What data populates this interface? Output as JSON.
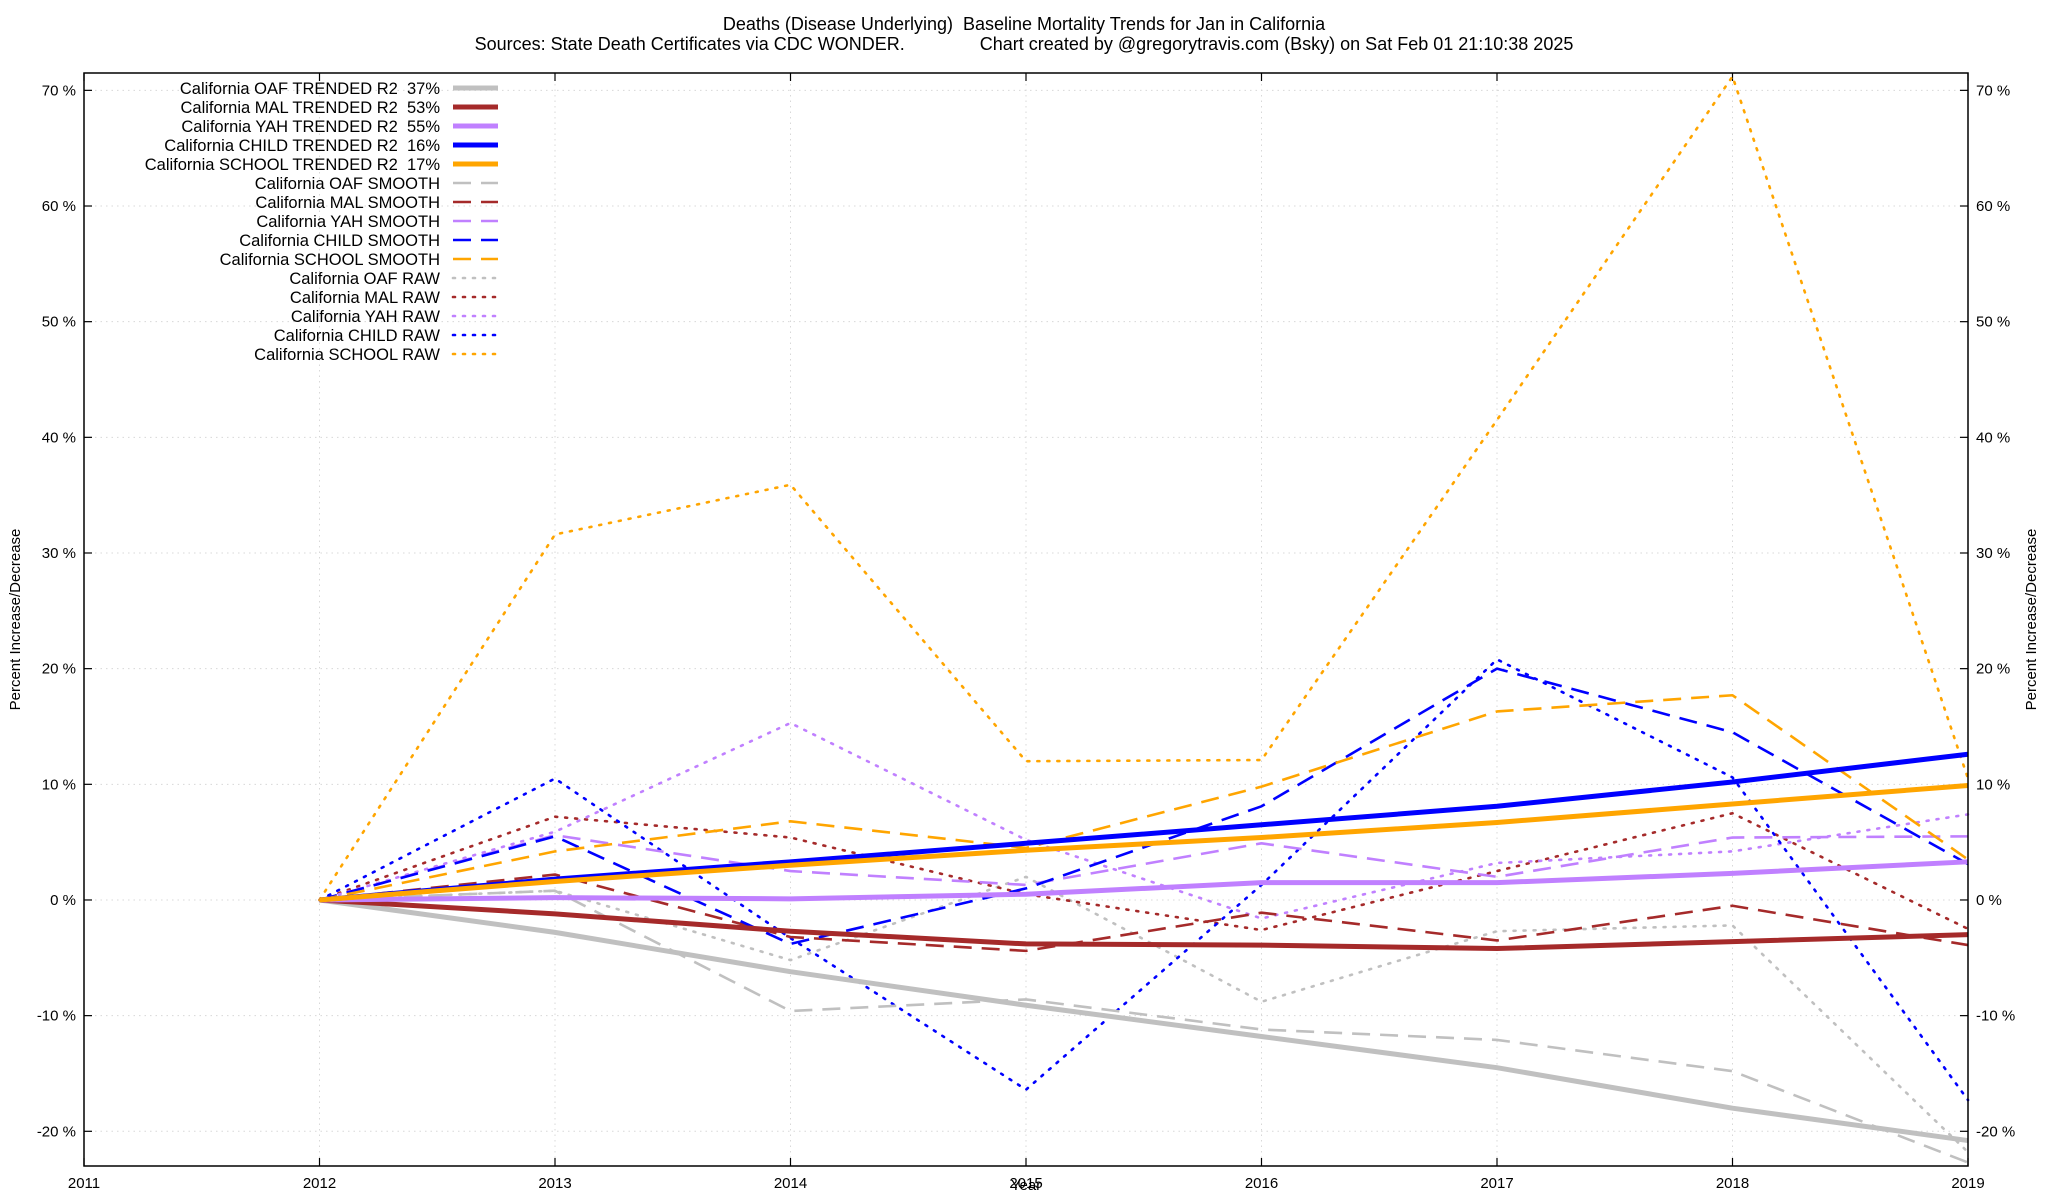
{
  "header": {
    "title_line1": "Deaths (Disease Underlying)  Baseline Mortality Trends for Jan in California",
    "title_line2": "Sources: State Death Certificates via CDC WONDER.               Chart created by @gregorytravis.com (Bsky) on Sat Feb 01 21:10:38 2025"
  },
  "chart_data": {
    "type": "line",
    "xlabel": "Year",
    "ylabel": "Percent Increase/Decrease",
    "y2label": "Percent Increase/Decrease",
    "xlim": [
      2011,
      2019
    ],
    "ylim": [
      -23,
      71.5
    ],
    "x_ticks": [
      "2011",
      "2012",
      "2013",
      "2014",
      "2015",
      "2016",
      "2017",
      "2018",
      "2019"
    ],
    "y_ticks": [
      -20,
      -10,
      0,
      10,
      20,
      30,
      40,
      50,
      60,
      70
    ],
    "y_tick_suffix": " %",
    "grid": true,
    "legend_position": "top-left",
    "x": [
      2012,
      2013,
      2014,
      2015,
      2016,
      2017,
      2018,
      2019
    ],
    "series": [
      {
        "name": "California OAF TRENDED R2  37%",
        "style": "solid",
        "color": "#c0c0c0",
        "width": 5,
        "values": [
          0,
          -2.8,
          -6.2,
          -9.1,
          -11.8,
          -14.5,
          -18.0,
          -20.8
        ]
      },
      {
        "name": "California MAL TRENDED R2  53%",
        "style": "solid",
        "color": "#a52a2a",
        "width": 5,
        "values": [
          0,
          -1.2,
          -2.7,
          -3.8,
          -3.9,
          -4.2,
          -3.6,
          -3.0
        ]
      },
      {
        "name": "California YAH TRENDED R2  55%",
        "style": "solid",
        "color": "#c080ff",
        "width": 5,
        "values": [
          0,
          0.2,
          0.1,
          0.5,
          1.5,
          1.5,
          2.3,
          3.3
        ]
      },
      {
        "name": "California CHILD TRENDED R2  16%",
        "style": "solid",
        "color": "#0000ff",
        "width": 5,
        "values": [
          0,
          1.8,
          3.3,
          4.9,
          6.5,
          8.1,
          10.2,
          12.6
        ]
      },
      {
        "name": "California SCHOOL TRENDED R2  17%",
        "style": "solid",
        "color": "#ffa500",
        "width": 5,
        "values": [
          0,
          1.6,
          3.0,
          4.3,
          5.4,
          6.7,
          8.3,
          9.9
        ]
      },
      {
        "name": "California OAF SMOOTH",
        "style": "dashed",
        "color": "#c0c0c0",
        "width": 2.6,
        "values": [
          0,
          0.8,
          -9.6,
          -8.6,
          -11.2,
          -12.1,
          -14.8,
          -22.7
        ]
      },
      {
        "name": "California MAL SMOOTH",
        "style": "dashed",
        "color": "#a52a2a",
        "width": 2.6,
        "values": [
          0,
          2.2,
          -3.2,
          -4.4,
          -1.1,
          -3.5,
          -0.5,
          -3.9
        ]
      },
      {
        "name": "California YAH SMOOTH",
        "style": "dashed",
        "color": "#c080ff",
        "width": 2.6,
        "values": [
          0,
          5.6,
          2.5,
          1.3,
          4.9,
          2.0,
          5.4,
          5.5
        ]
      },
      {
        "name": "California CHILD SMOOTH",
        "style": "dashed",
        "color": "#0000ff",
        "width": 2.6,
        "values": [
          0,
          5.5,
          -3.8,
          1.0,
          8.1,
          20.0,
          14.5,
          3.1
        ]
      },
      {
        "name": "California SCHOOL SMOOTH",
        "style": "dashed",
        "color": "#ffa500",
        "width": 2.6,
        "values": [
          0,
          4.2,
          6.8,
          4.5,
          9.8,
          16.3,
          17.7,
          3.5
        ]
      },
      {
        "name": "California OAF RAW",
        "style": "dotted",
        "color": "#c0c0c0",
        "width": 2.6,
        "values": [
          0,
          0.8,
          -5.2,
          2.0,
          -8.8,
          -2.7,
          -2.2,
          -21.8
        ]
      },
      {
        "name": "California MAL RAW",
        "style": "dotted",
        "color": "#a52a2a",
        "width": 2.6,
        "values": [
          0,
          7.2,
          5.4,
          0.5,
          -2.6,
          2.5,
          7.5,
          -2.5
        ]
      },
      {
        "name": "California YAH RAW",
        "style": "dotted",
        "color": "#c080ff",
        "width": 2.6,
        "values": [
          0,
          5.9,
          15.3,
          5.2,
          -1.6,
          3.2,
          4.2,
          7.4
        ]
      },
      {
        "name": "California CHILD RAW",
        "style": "dotted",
        "color": "#0000ff",
        "width": 2.6,
        "values": [
          0,
          10.5,
          -3.3,
          -16.4,
          1.3,
          20.8,
          10.6,
          -17.3
        ]
      },
      {
        "name": "California SCHOOL RAW",
        "style": "dotted",
        "color": "#ffa500",
        "width": 2.6,
        "values": [
          0,
          31.6,
          35.9,
          12.0,
          12.1,
          41.5,
          71.2,
          10.5
        ]
      }
    ]
  }
}
